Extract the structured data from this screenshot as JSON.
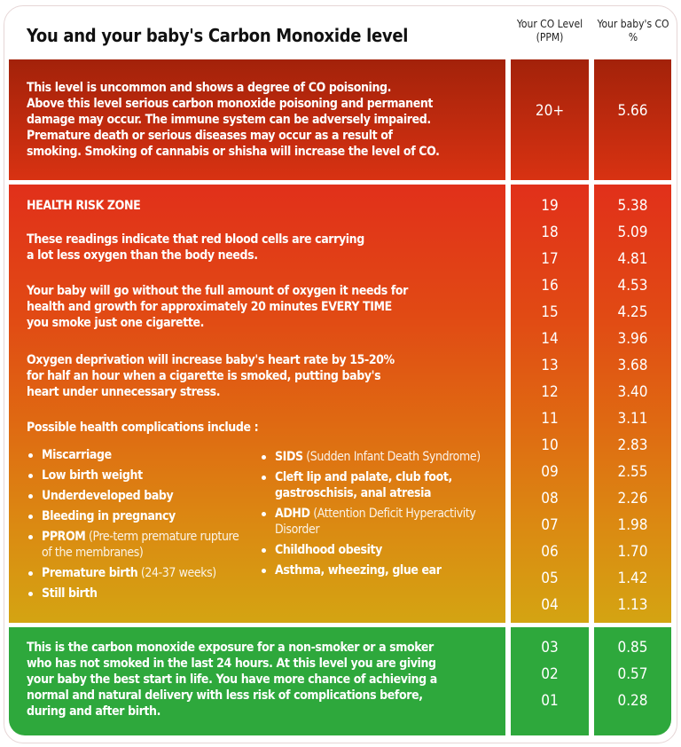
{
  "title": "You and your baby's Carbon Monoxide level",
  "columns": {
    "co_level": "Your CO Level (PPM)",
    "baby_co": "Your baby's CO %"
  },
  "top": {
    "text": [
      "This level is uncommon and shows a degree of CO poisoning.",
      "Above this level serious carbon monoxide poisoning and permanent",
      "damage may occur. The immune system can be adversely impaired.",
      "Premature death or serious diseases may occur as a result of",
      "smoking. Smoking of cannabis or shisha will increase the level of CO."
    ],
    "ppm": "20+",
    "pct": "5.66",
    "color": "#b8260c"
  },
  "middle": {
    "heading": "HEALTH RISK ZONE",
    "p1": [
      "These readings indicate that red blood cells are carrying",
      "a lot less oxygen than the body needs."
    ],
    "p2": [
      "Your baby will go without the full amount of oxygen it needs for",
      "health and growth for approximately 20 minutes EVERY TIME",
      "you smoke just one cigarette."
    ],
    "p3": [
      "Oxygen deprivation will increase baby's heart rate by 15-20%",
      "for half an hour when a cigarette is smoked, putting baby's",
      "heart under unnecessary stress."
    ],
    "complications_label": "Possible health complications include :",
    "list_left": [
      {
        "bold": "Miscarriage",
        "light": ""
      },
      {
        "bold": "Low birth weight",
        "light": ""
      },
      {
        "bold": "Underdeveloped baby",
        "light": ""
      },
      {
        "bold": "Bleeding in pregnancy",
        "light": ""
      },
      {
        "bold": "PPROM",
        "light": " (Pre-term premature rupture of the membranes)"
      },
      {
        "bold": "Premature birth",
        "light": " (24-37 weeks)"
      },
      {
        "bold": "Still birth",
        "light": ""
      }
    ],
    "list_right": [
      {
        "bold": "SIDS",
        "light": " (Sudden Infant Death Syndrome)"
      },
      {
        "bold": "Cleft lip and palate, club foot, gastroschisis, anal atresia",
        "light": ""
      },
      {
        "bold": "ADHD",
        "light": " (Attention Deficit Hyperactivity Disorder"
      },
      {
        "bold": "Childhood obesity",
        "light": ""
      },
      {
        "bold": "Asthma, wheezing, glue ear",
        "light": ""
      }
    ],
    "rows": [
      {
        "ppm": "19",
        "pct": "5.38"
      },
      {
        "ppm": "18",
        "pct": "5.09"
      },
      {
        "ppm": "17",
        "pct": "4.81"
      },
      {
        "ppm": "16",
        "pct": "4.53"
      },
      {
        "ppm": "15",
        "pct": "4.25"
      },
      {
        "ppm": "14",
        "pct": "3.96"
      },
      {
        "ppm": "13",
        "pct": "3.68"
      },
      {
        "ppm": "12",
        "pct": "3.40"
      },
      {
        "ppm": "11",
        "pct": "3.11"
      },
      {
        "ppm": "10",
        "pct": "2.83"
      },
      {
        "ppm": "09",
        "pct": "2.55"
      },
      {
        "ppm": "08",
        "pct": "2.26"
      },
      {
        "ppm": "07",
        "pct": "1.98"
      },
      {
        "ppm": "06",
        "pct": "1.70"
      },
      {
        "ppm": "05",
        "pct": "1.42"
      },
      {
        "ppm": "04",
        "pct": "1.13"
      }
    ],
    "colors": [
      "#e1301a",
      "#df6a12",
      "#d4a412"
    ]
  },
  "bottom": {
    "text": [
      "This is the carbon monoxide exposure for a non-smoker or a smoker",
      "who has not smoked in the last 24 hours. At this level you are giving",
      "your baby the best start in life. You have more chance of achieving a",
      "normal and natural delivery with less risk of complications before,",
      "during and after birth."
    ],
    "rows": [
      {
        "ppm": "03",
        "pct": "0.85"
      },
      {
        "ppm": "02",
        "pct": "0.57"
      },
      {
        "ppm": "01",
        "pct": "0.28"
      }
    ],
    "color": "#2ea83c"
  }
}
